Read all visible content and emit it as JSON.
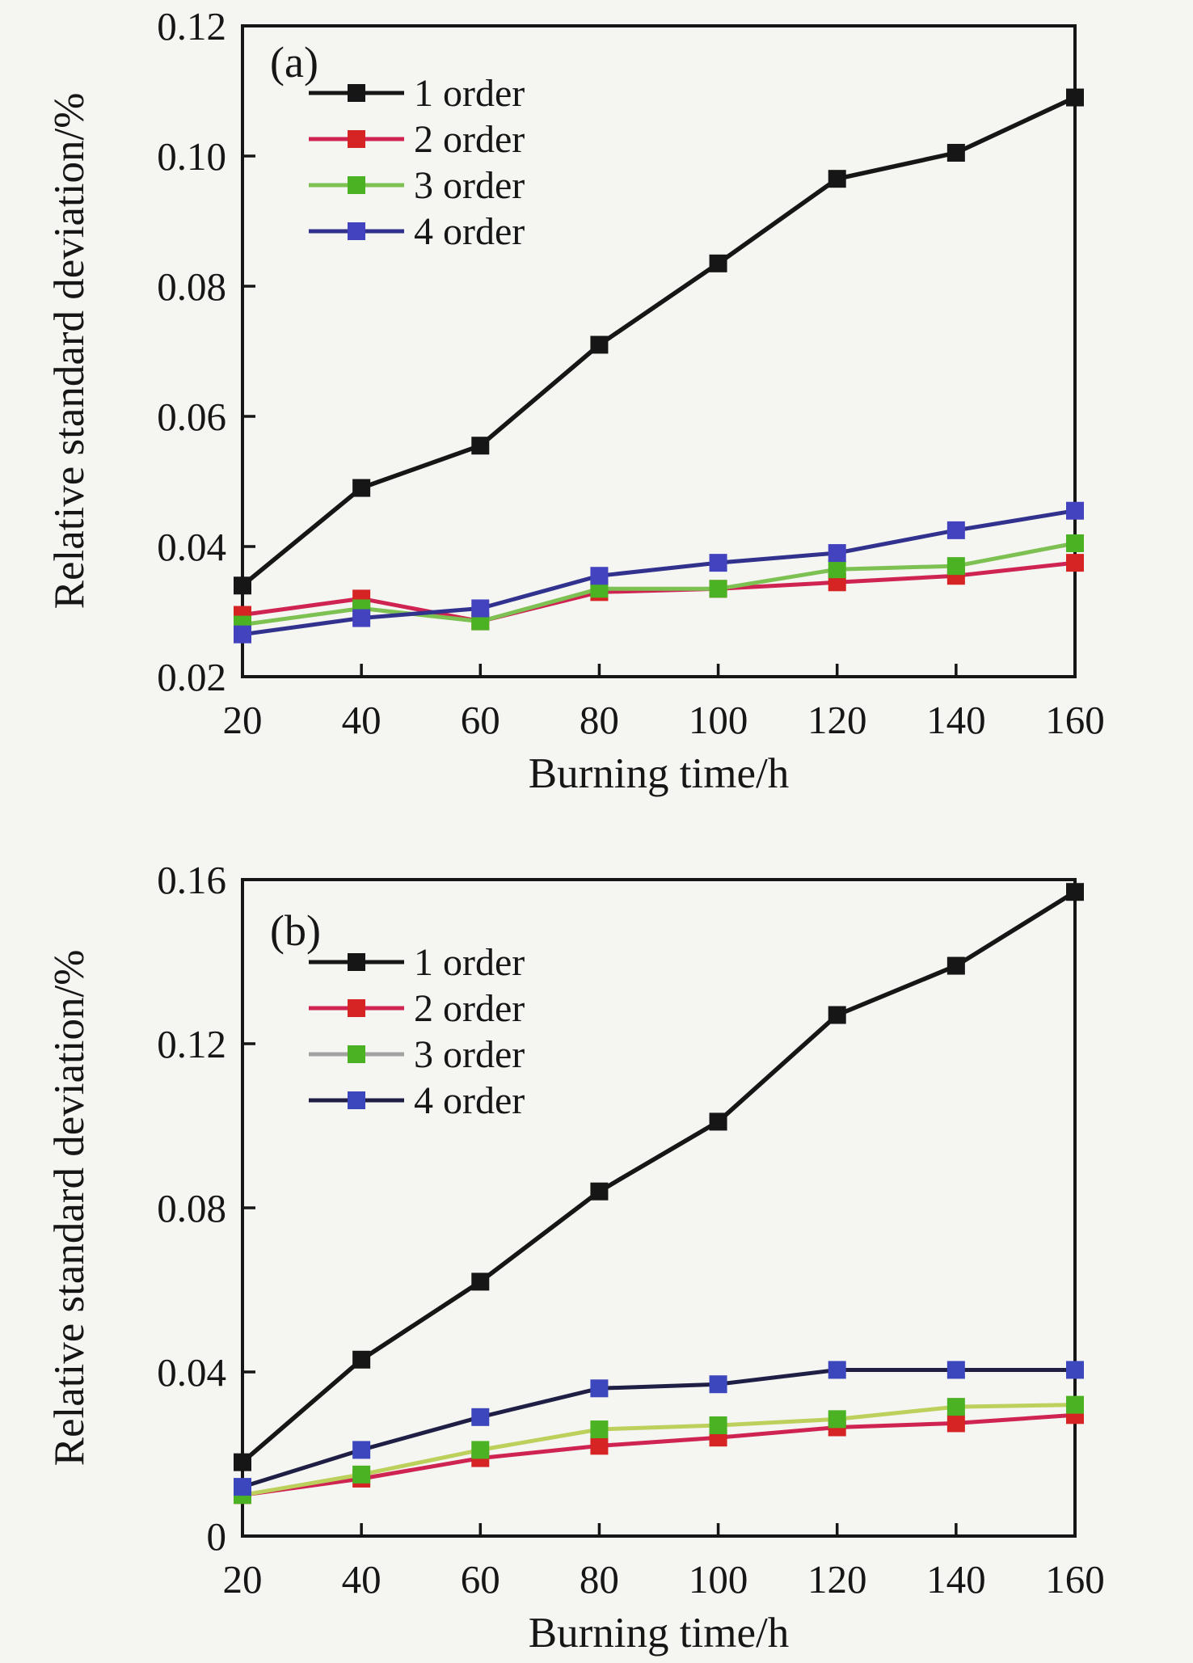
{
  "figure": {
    "background": "#f5f5f2",
    "text_color": "#161616",
    "axis_color": "#161616"
  },
  "chart_data": [
    {
      "type": "line",
      "panel_label": "(a)",
      "xlabel": "Burning time/h",
      "ylabel": "Relative standard deviation/%",
      "x": [
        20,
        40,
        60,
        80,
        100,
        120,
        140,
        160
      ],
      "xtick_labels": [
        "20",
        "40",
        "60",
        "80",
        "100",
        "120",
        "140",
        "160"
      ],
      "xlim": [
        20,
        160
      ],
      "ylim": [
        0.02,
        0.12
      ],
      "yticks": [
        0.02,
        0.04,
        0.06,
        0.08,
        0.1,
        0.12
      ],
      "ytick_labels": [
        "0.02",
        "0.04",
        "0.06",
        "0.08",
        "0.10",
        "0.12"
      ],
      "grid": false,
      "legend_position": "upper-left-inside",
      "series": [
        {
          "name": "1 order",
          "line_color": "#161616",
          "marker_color": "#161616",
          "values": [
            0.034,
            0.049,
            0.0555,
            0.071,
            0.0835,
            0.0965,
            0.1005,
            0.109
          ]
        },
        {
          "name": "2 order",
          "line_color": "#cf2352",
          "marker_color": "#d62323",
          "values": [
            0.0295,
            0.032,
            0.0285,
            0.033,
            0.0335,
            0.0345,
            0.0355,
            0.0375
          ]
        },
        {
          "name": "3 order",
          "line_color": "#7dc152",
          "marker_color": "#4bb224",
          "values": [
            0.028,
            0.0305,
            0.0285,
            0.0335,
            0.0335,
            0.0365,
            0.037,
            0.0405
          ]
        },
        {
          "name": "4 order",
          "line_color": "#31318e",
          "marker_color": "#4343c0",
          "values": [
            0.0265,
            0.029,
            0.0305,
            0.0355,
            0.0375,
            0.039,
            0.0425,
            0.0455
          ]
        }
      ]
    },
    {
      "type": "line",
      "panel_label": "(b)",
      "xlabel": "Burning time/h",
      "ylabel": "Relative standard deviation/%",
      "x": [
        20,
        40,
        60,
        80,
        100,
        120,
        140,
        160
      ],
      "xtick_labels": [
        "20",
        "40",
        "60",
        "80",
        "100",
        "120",
        "140",
        "160"
      ],
      "xlim": [
        20,
        160
      ],
      "ylim": [
        0,
        0.16
      ],
      "yticks": [
        0,
        0.04,
        0.08,
        0.12,
        0.16
      ],
      "ytick_labels": [
        "0",
        "0.04",
        "0.08",
        "0.12",
        "0.16"
      ],
      "grid": false,
      "legend_position": "upper-left-inside",
      "series": [
        {
          "name": "1 order",
          "line_color": "#161616",
          "marker_color": "#161616",
          "values": [
            0.018,
            0.043,
            0.062,
            0.084,
            0.101,
            0.127,
            0.139,
            0.157
          ]
        },
        {
          "name": "2 order",
          "line_color": "#cf2352",
          "marker_color": "#d62323",
          "values": [
            0.01,
            0.014,
            0.019,
            0.022,
            0.024,
            0.0265,
            0.0275,
            0.0295
          ]
        },
        {
          "name": "3 order",
          "line_color": "#bcd05c",
          "marker_color": "#4bb224",
          "legend_line_color": "#a2a2a2",
          "values": [
            0.01,
            0.015,
            0.021,
            0.026,
            0.027,
            0.0285,
            0.0315,
            0.032
          ]
        },
        {
          "name": "4 order",
          "line_color": "#1f1f46",
          "marker_color": "#3c46bd",
          "values": [
            0.012,
            0.021,
            0.029,
            0.036,
            0.037,
            0.0405,
            0.0405,
            0.0405
          ]
        }
      ]
    }
  ]
}
